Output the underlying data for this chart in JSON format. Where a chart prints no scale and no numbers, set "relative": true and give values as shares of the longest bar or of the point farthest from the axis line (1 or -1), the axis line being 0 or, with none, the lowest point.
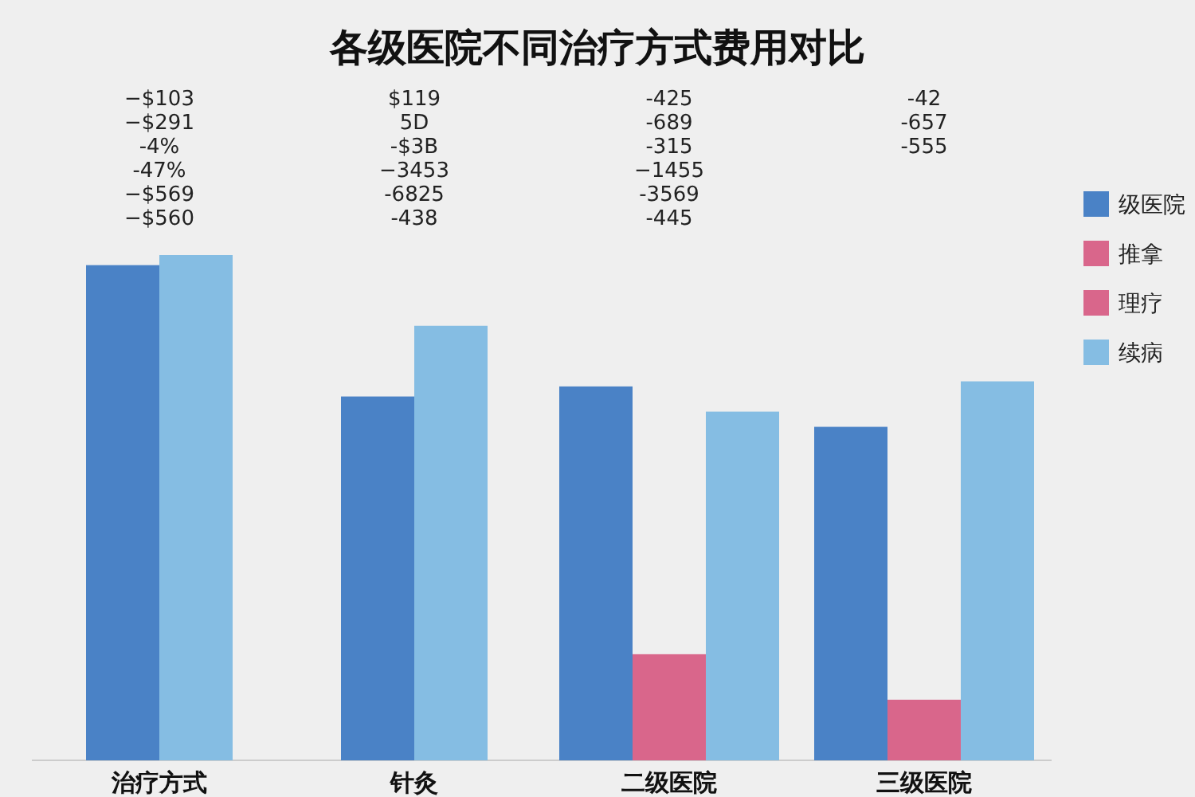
{
  "chart_data": {
    "type": "bar",
    "title": "各级医院不同治疗方式费用对比",
    "relative": true,
    "legend": "right",
    "categories": [
      "治疗方式",
      "针灸",
      "二级医院",
      "三级医院"
    ],
    "series": [
      {
        "name": "级医院",
        "color": "#4a82c6",
        "values": [
          0.98,
          0.72,
          0.74,
          0.66
        ]
      },
      {
        "name": "推拿",
        "color": "#d9668b",
        "values": [
          null,
          null,
          null,
          null
        ]
      },
      {
        "name": "理疗",
        "color": "#d9668b",
        "values": [
          null,
          null,
          0.21,
          0.12
        ]
      },
      {
        "name": "续病",
        "color": "#85bde3",
        "values": [
          1.0,
          0.86,
          0.69,
          0.75
        ]
      }
    ],
    "annotations": [
      "−$103",
      "−$291",
      "-4%",
      "-47%",
      "−$569",
      "−$560",
      "$119",
      "5D",
      "-$3B",
      "−3453",
      "-6825",
      "-438",
      "-425",
      "-689",
      "-315",
      "−1455",
      "-3569",
      "-445",
      "-42",
      "-657",
      "-555"
    ]
  }
}
